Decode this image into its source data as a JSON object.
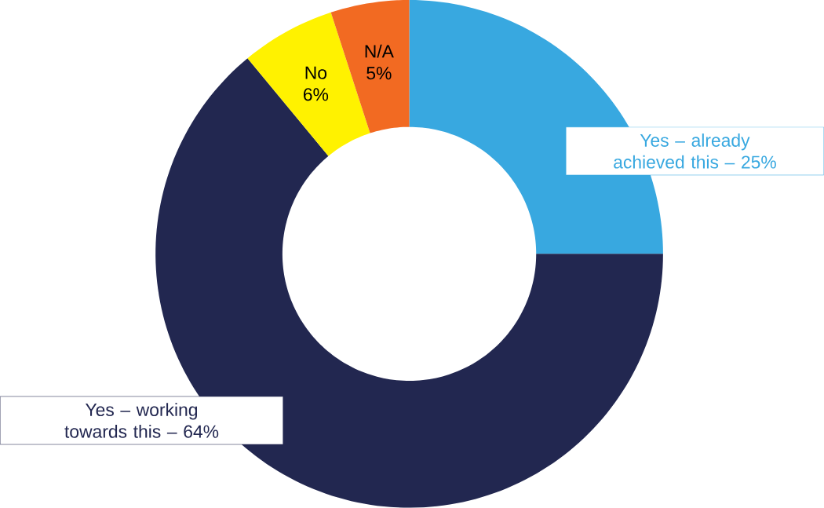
{
  "chart_data": {
    "type": "donut",
    "categories": [
      "Yes – already achieved this –",
      "Yes – working towards this –",
      "No",
      "N/A"
    ],
    "values": [
      25,
      64,
      6,
      5
    ],
    "value_labels": [
      "25%",
      "64%",
      "6%",
      "5%"
    ],
    "colors": [
      "#38a8e0",
      "#222750",
      "#fff200",
      "#f26a22"
    ]
  }
}
